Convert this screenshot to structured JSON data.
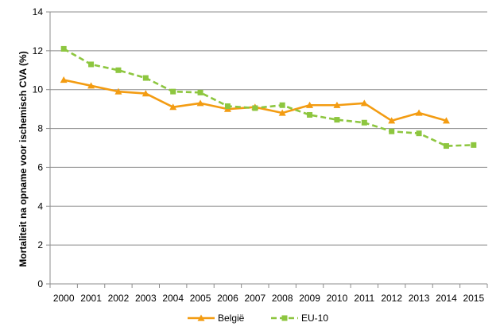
{
  "chart_data": {
    "type": "line",
    "x": [
      "2000",
      "2001",
      "2002",
      "2003",
      "2004",
      "2005",
      "2006",
      "2007",
      "2008",
      "2009",
      "2010",
      "2011",
      "2012",
      "2013",
      "2014",
      "2015"
    ],
    "ylabel": "Mortaliteit na opname voor ischemisch CVA (%)",
    "ylim": [
      0,
      14
    ],
    "yticks": [
      0,
      2,
      4,
      6,
      8,
      10,
      12,
      14
    ],
    "grid": true,
    "legend_position": "bottom",
    "series": [
      {
        "name": "België",
        "color": "#F39C12",
        "line_style": "solid",
        "marker": "triangle",
        "values": [
          10.5,
          10.2,
          9.9,
          9.8,
          9.1,
          9.3,
          9.0,
          9.1,
          8.8,
          9.2,
          9.2,
          9.3,
          8.4,
          8.8,
          8.4,
          null
        ]
      },
      {
        "name": "EU-10",
        "color": "#8DC63F",
        "line_style": "dashed",
        "marker": "square",
        "values": [
          12.1,
          11.3,
          11.0,
          10.6,
          9.9,
          9.85,
          9.15,
          9.05,
          9.2,
          8.7,
          8.45,
          8.3,
          7.85,
          7.75,
          7.1,
          7.15
        ]
      }
    ]
  }
}
